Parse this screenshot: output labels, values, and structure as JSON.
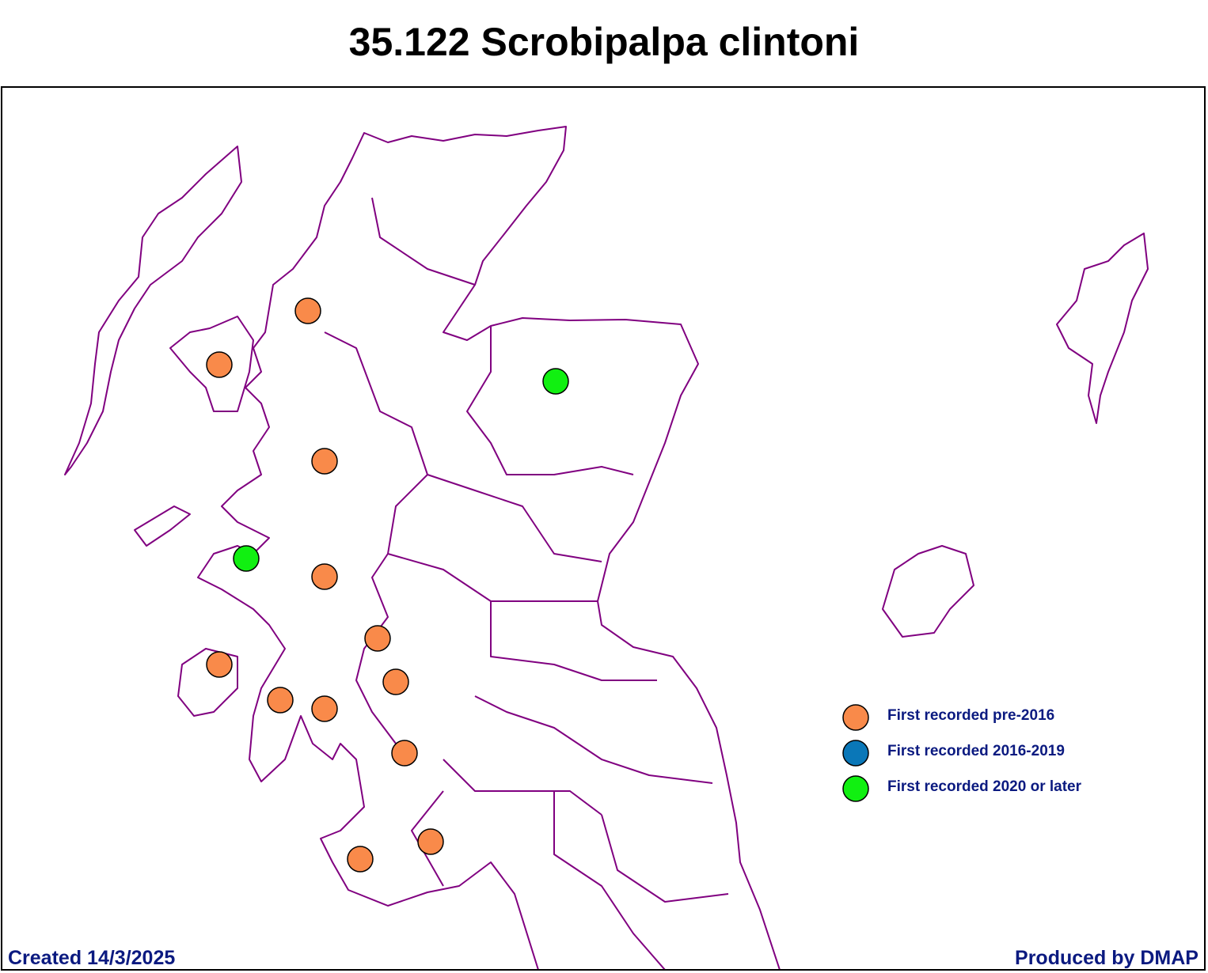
{
  "title": "35.122 Scrobipalpa clintoni",
  "legend": [
    {
      "label": "First recorded pre-2016",
      "color": "#f98a4a"
    },
    {
      "label": "First recorded 2016-2019",
      "color": "#0a77b8"
    },
    {
      "label": "First recorded 2020 or later",
      "color": "#11f011"
    }
  ],
  "footer": {
    "left": "Created 14/3/2025",
    "right": "Produced by DMAP"
  }
}
